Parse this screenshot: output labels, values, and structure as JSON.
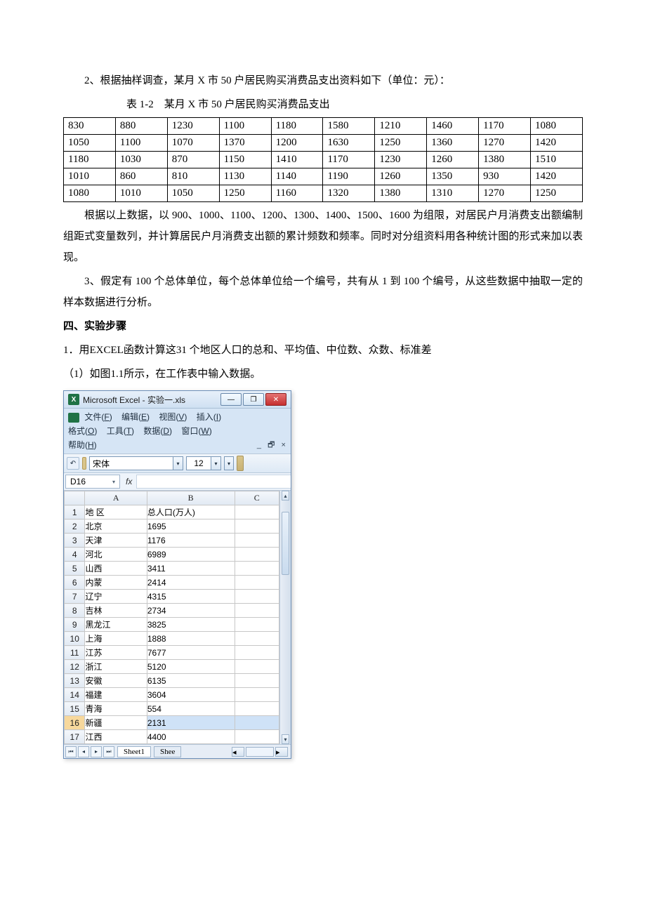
{
  "q2": {
    "intro": "2、根据抽样调查，某月 X 市 50 户居民购买消费品支出资料如下（单位：元）：",
    "caption": "表 1-2　某月 X 市 50 户居民购买消费品支出",
    "rows": [
      [
        "830",
        "880",
        "1230",
        "1100",
        "1180",
        "1580",
        "1210",
        "1460",
        "1170",
        "1080"
      ],
      [
        "1050",
        "1100",
        "1070",
        "1370",
        "1200",
        "1630",
        "1250",
        "1360",
        "1270",
        "1420"
      ],
      [
        "1180",
        "1030",
        "870",
        "1150",
        "1410",
        "1170",
        "1230",
        "1260",
        "1380",
        "1510"
      ],
      [
        "1010",
        "860",
        "810",
        "1130",
        "1140",
        "1190",
        "1260",
        "1350",
        "930",
        "1420"
      ],
      [
        "1080",
        "1010",
        "1050",
        "1250",
        "1160",
        "1320",
        "1380",
        "1310",
        "1270",
        "1250"
      ]
    ],
    "after": "根据以上数据，以 900、1000、1100、1200、1300、1400、1500、1600 为组限，对居民户月消费支出额编制组距式变量数列，并计算居民户月消费支出额的累计频数和频率。同时对分组资料用各种统计图的形式来加以表现。"
  },
  "q3": "3、假定有 100 个总体单位，每个总体单位给一个编号，共有从 1 到 100 个编号，从这些数据中抽取一定的样本数据进行分析。",
  "sec4": {
    "title": "四、实验步骤",
    "step1": "1．用EXCEL函数计算这31 个地区人口的总和、平均值、中位数、众数、标准差",
    "sub1": "（1）如图1.1所示，在工作表中输入数据。"
  },
  "excel": {
    "title": "Microsoft Excel - 实验一.xls",
    "menus": {
      "row1": [
        "文件(F)",
        "编辑(E)",
        "视图(V)",
        "插入(I)"
      ],
      "row2": [
        "格式(O)",
        "工具(T)",
        "数据(D)",
        "窗口(W)"
      ],
      "help": "帮助(H)"
    },
    "font": "宋体",
    "fontsize": "12",
    "cellref": "D16",
    "fx": "fx",
    "cols": [
      "A",
      "B",
      "C"
    ],
    "rows": [
      {
        "n": "1",
        "a": "地 区",
        "b": "总人口(万人)",
        "c": ""
      },
      {
        "n": "2",
        "a": "北京",
        "b": "1695",
        "c": ""
      },
      {
        "n": "3",
        "a": "天津",
        "b": "1176",
        "c": ""
      },
      {
        "n": "4",
        "a": "河北",
        "b": "6989",
        "c": ""
      },
      {
        "n": "5",
        "a": "山西",
        "b": "3411",
        "c": ""
      },
      {
        "n": "6",
        "a": "内蒙",
        "b": "2414",
        "c": ""
      },
      {
        "n": "7",
        "a": "辽宁",
        "b": "4315",
        "c": ""
      },
      {
        "n": "8",
        "a": "吉林",
        "b": "2734",
        "c": ""
      },
      {
        "n": "9",
        "a": "黑龙江",
        "b": "3825",
        "c": ""
      },
      {
        "n": "10",
        "a": "上海",
        "b": "1888",
        "c": ""
      },
      {
        "n": "11",
        "a": "江苏",
        "b": "7677",
        "c": ""
      },
      {
        "n": "12",
        "a": "浙江",
        "b": "5120",
        "c": ""
      },
      {
        "n": "13",
        "a": "安徽",
        "b": "6135",
        "c": ""
      },
      {
        "n": "14",
        "a": "福建",
        "b": "3604",
        "c": ""
      },
      {
        "n": "15",
        "a": "青海",
        "b": "554",
        "c": ""
      },
      {
        "n": "16",
        "a": "新疆",
        "b": "2131",
        "c": "",
        "selected": true
      },
      {
        "n": "17",
        "a": "江西",
        "b": "4400",
        "c": ""
      }
    ],
    "sheets": {
      "active": "Sheet1",
      "next": "Shee"
    },
    "colwidths": {
      "A": 78,
      "B": 110,
      "C": 56
    }
  }
}
